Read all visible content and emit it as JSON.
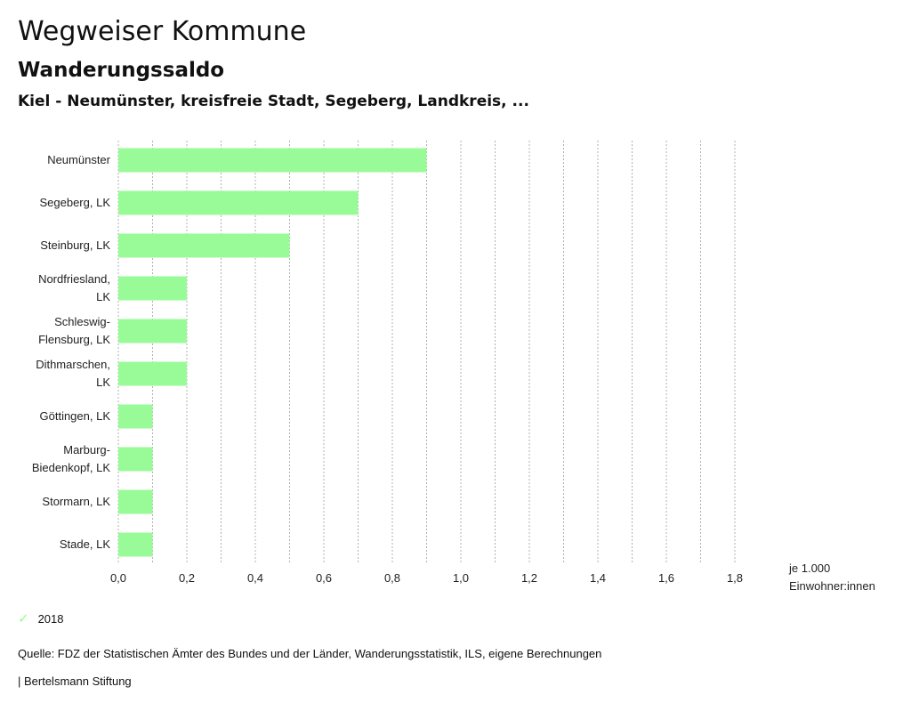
{
  "header": {
    "title": "Wegweiser Kommune",
    "subtitle": "Wanderungssaldo",
    "regions": "Kiel - Neumünster, kreisfreie Stadt, Segeberg, Landkreis, ..."
  },
  "legend": {
    "label": "2018",
    "icon": "check-icon"
  },
  "footer": {
    "source": "Quelle: FDZ der Statistischen Ämter des Bundes und der Länder, Wanderungsstatistik, ILS, eigene Berechnungen",
    "credit": "| Bertelsmann Stiftung"
  },
  "colors": {
    "bar": "#98fb98",
    "grid": "#b0b0b0"
  },
  "chart_data": {
    "type": "bar",
    "orientation": "horizontal",
    "categories": [
      [
        "Neumünster"
      ],
      [
        "Segeberg, LK"
      ],
      [
        "Steinburg, LK"
      ],
      [
        "Nordfriesland,",
        "LK"
      ],
      [
        "Schleswig-",
        "Flensburg, LK"
      ],
      [
        "Dithmarschen,",
        "LK"
      ],
      [
        "Göttingen, LK"
      ],
      [
        "Marburg-",
        "Biedenkopf, LK"
      ],
      [
        "Stormarn, LK"
      ],
      [
        "Stade, LK"
      ]
    ],
    "series": [
      {
        "name": "2018",
        "values": [
          0.9,
          0.7,
          0.5,
          0.2,
          0.2,
          0.2,
          0.1,
          0.1,
          0.1,
          0.1
        ]
      }
    ],
    "xlim": [
      0,
      1.8
    ],
    "xticks": [
      "0,0",
      "0,2",
      "0,4",
      "0,6",
      "0,8",
      "1,0",
      "1,2",
      "1,4",
      "1,6",
      "1,8"
    ],
    "xlabel": [
      "je 1.000",
      "Einwohner:innen"
    ],
    "grid": true
  }
}
